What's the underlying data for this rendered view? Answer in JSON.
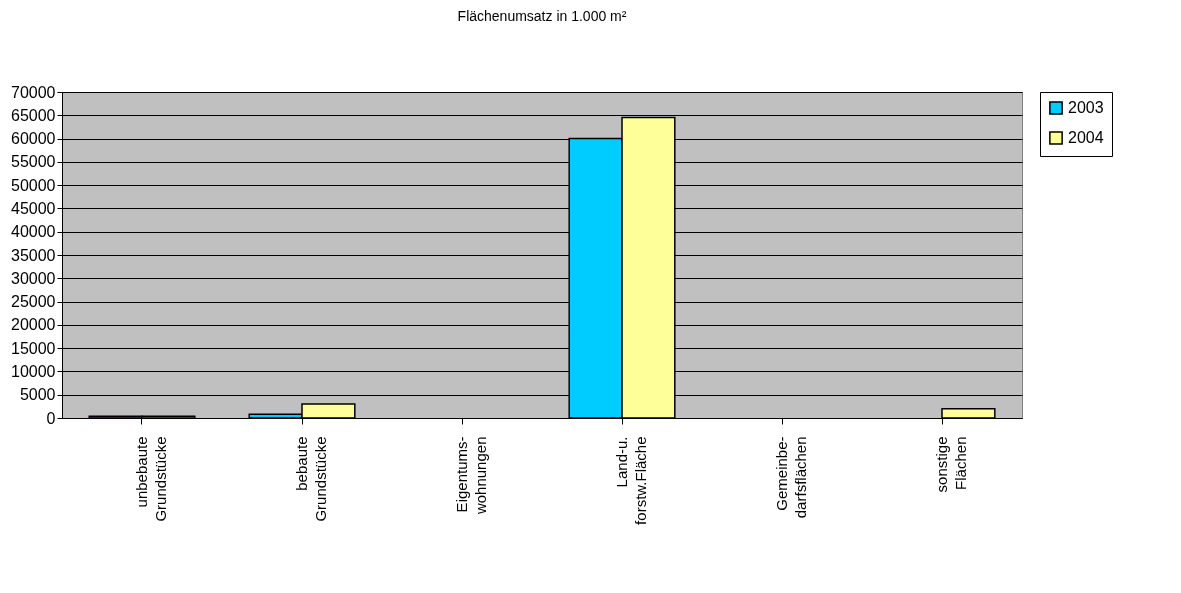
{
  "chart_data": {
    "type": "bar",
    "title": "Flächenumsatz in 1.000 m²",
    "categories": [
      "unbebaute\nGrundstücke",
      "bebaute\nGrundstücke",
      "Eigentums-\nwohnungen",
      "Land-u.\nforstw.Fläche",
      "Gemeinbe-\ndarfsflächen",
      "sonstige\nFlächen"
    ],
    "series": [
      {
        "name": "2003",
        "color": "#00ccff",
        "values": [
          400,
          800,
          null,
          60000,
          null,
          null
        ]
      },
      {
        "name": "2004",
        "color": "#ffff99",
        "values": [
          400,
          3000,
          null,
          64500,
          null,
          2000
        ]
      }
    ],
    "ylim": [
      0,
      70000
    ],
    "yticks": [
      0,
      5000,
      10000,
      15000,
      20000,
      25000,
      30000,
      35000,
      40000,
      45000,
      50000,
      55000,
      60000,
      65000,
      70000
    ],
    "grid": "y",
    "legend": "right"
  }
}
